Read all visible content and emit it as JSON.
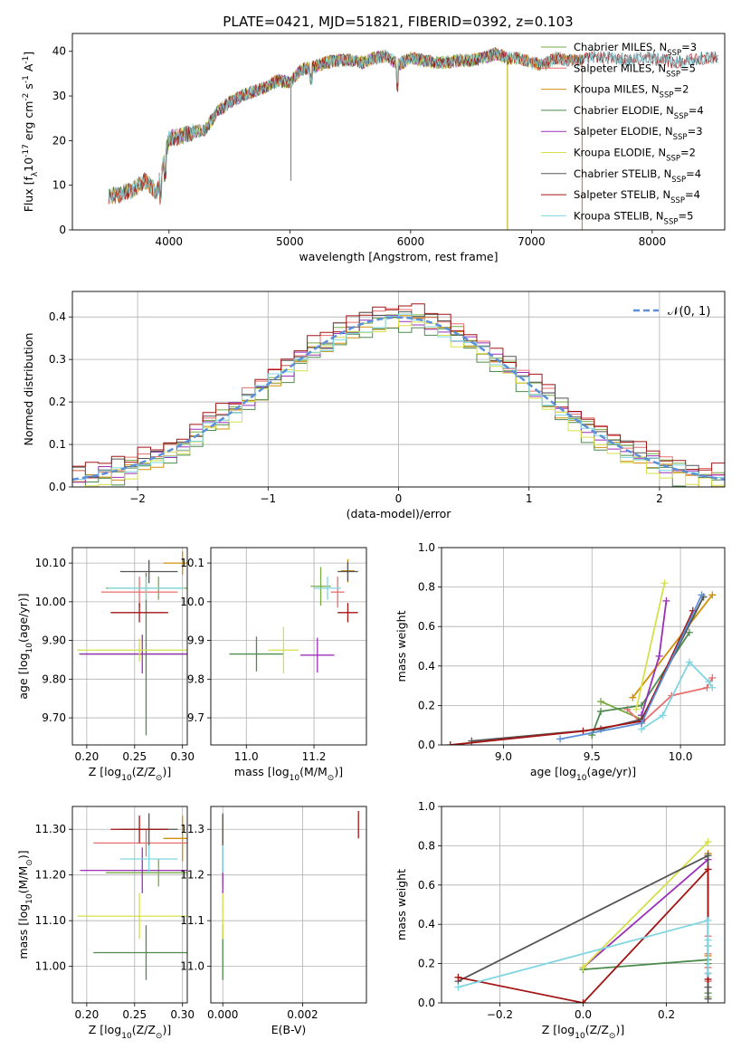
{
  "figure_title": "PLATE=0421, MJD=51821, FIBERID=0392, z=0.103",
  "models": [
    {
      "label": "Chabrier MILES, N$_{SSP}$=3",
      "base": "Chabrier MILES, N",
      "sub": "SSP",
      "tail": "=3",
      "color": "#77ab43"
    },
    {
      "label": "Salpeter MILES, N$_{SSP}$=5",
      "base": "Salpeter MILES, N",
      "sub": "SSP",
      "tail": "=5",
      "color": "#e86f6f"
    },
    {
      "label": "Kroupa MILES, N$_{SSP}$=2",
      "base": "Kroupa MILES, N",
      "sub": "SSP",
      "tail": "=2",
      "color": "#d2900a"
    },
    {
      "label": "Chabrier ELODIE, N$_{SSP}$=4",
      "base": "Chabrier ELODIE, N",
      "sub": "SSP",
      "tail": "=4",
      "color": "#4e8b4e"
    },
    {
      "label": "Salpeter ELODIE, N$_{SSP}$=3",
      "base": "Salpeter ELODIE, N",
      "sub": "SSP",
      "tail": "=3",
      "color": "#9b30b8"
    },
    {
      "label": "Kroupa ELODIE, N$_{SSP}$=2",
      "base": "Kroupa ELODIE, N",
      "sub": "SSP",
      "tail": "=2",
      "color": "#d6e04a"
    },
    {
      "label": "Chabrier STELIB, N$_{SSP}$=4",
      "base": "Chabrier STELIB, N",
      "sub": "SSP",
      "tail": "=4",
      "color": "#555555"
    },
    {
      "label": "Salpeter STELIB, N$_{SSP}$=4",
      "base": "Salpeter STELIB, N",
      "sub": "SSP",
      "tail": "=4",
      "color": "#a31515"
    },
    {
      "label": "Kroupa STELIB, N$_{SSP}$=5",
      "base": "Kroupa STELIB, N",
      "sub": "SSP",
      "tail": "=5",
      "color": "#7fd6e0"
    }
  ],
  "chart_data": [
    {
      "id": "spectrum",
      "type": "line",
      "title": "PLATE=0421, MJD=51821, FIBERID=0392, z=0.103",
      "xlabel": "wavelength [Angstrom, rest frame]",
      "ylabel": "Flux [f$_\\lambda$10$^{-17}$ erg cm$^{-2}$ s$^{-1}$ A$^{-1}$]",
      "xlim": [
        3200,
        8600
      ],
      "ylim": [
        0,
        44
      ],
      "xticks": [
        4000,
        5000,
        6000,
        7000,
        8000
      ],
      "yticks": [
        0,
        10,
        20,
        30,
        40
      ],
      "grid": false,
      "legend": "right",
      "x": [
        3500,
        3600,
        3700,
        3800,
        3900,
        3950,
        4000,
        4100,
        4200,
        4300,
        4400,
        4500,
        4600,
        4700,
        4800,
        4900,
        5000,
        5100,
        5200,
        5300,
        5400,
        5500,
        5600,
        5700,
        5800,
        5900,
        6000,
        6100,
        6200,
        6300,
        6400,
        6500,
        6600,
        6700,
        6800,
        6900,
        7000,
        7100,
        7200,
        7300,
        7400,
        7500,
        7600,
        7700,
        7800,
        7900,
        8000,
        8100,
        8200,
        8300,
        8400
      ],
      "y": [
        7.5,
        8.0,
        9.0,
        11.0,
        8.5,
        14.5,
        20.5,
        21.0,
        22.0,
        22.5,
        26.5,
        28.5,
        30.0,
        31.0,
        32.0,
        33.5,
        33.0,
        36.0,
        36.5,
        37.5,
        38.0,
        38.0,
        37.5,
        38.5,
        39.0,
        37.0,
        38.5,
        38.0,
        37.5,
        37.5,
        38.0,
        38.0,
        38.5,
        39.5,
        38.5,
        38.5,
        37.5,
        37.0,
        38.5,
        38.0,
        38.0,
        39.0,
        38.5,
        38.5,
        38.0,
        38.5,
        38.5,
        38.0,
        37.5,
        38.0,
        38.5
      ],
      "series": [
        {
          "name": "Chabrier MILES, N$_{SSP}$=3",
          "range": [
            3500,
            7420
          ]
        },
        {
          "name": "Salpeter MILES, N$_{SSP}$=5",
          "range": [
            3500,
            7420
          ]
        },
        {
          "name": "Kroupa MILES, N$_{SSP}$=2",
          "range": [
            3500,
            7420
          ]
        },
        {
          "name": "Chabrier ELODIE, N$_{SSP}$=4",
          "range": [
            3900,
            6800
          ]
        },
        {
          "name": "Salpeter ELODIE, N$_{SSP}$=3",
          "range": [
            3900,
            6800
          ]
        },
        {
          "name": "Kroupa ELODIE, N$_{SSP}$=2",
          "range": [
            3900,
            6800
          ]
        },
        {
          "name": "Chabrier STELIB, N$_{SSP}$=4",
          "range": [
            3500,
            8550
          ]
        },
        {
          "name": "Salpeter STELIB, N$_{SSP}$=4",
          "range": [
            3500,
            8550
          ]
        },
        {
          "name": "Kroupa STELIB, N$_{SSP}$=5",
          "range": [
            3500,
            8550
          ]
        }
      ]
    },
    {
      "id": "residuals",
      "type": "line",
      "xlabel": "(data-model)/error",
      "ylabel": "Normed distribution",
      "xlim": [
        -2.5,
        2.5
      ],
      "ylim": [
        0,
        0.46
      ],
      "xticks": [
        -2,
        -1,
        0,
        1,
        2
      ],
      "yticks": [
        0.0,
        0.1,
        0.2,
        0.3,
        0.4
      ],
      "grid": true,
      "legend": "top-right",
      "legend_entry": "$\\mathcal{N}(0,1)$",
      "legend_text": "𝒩(0, 1)",
      "reference_curve": "N(0,1)",
      "bin_width": 0.1,
      "series": [
        {
          "name": "Chabrier MILES, N$_{SSP}$=3",
          "offset": 0.005
        },
        {
          "name": "Salpeter MILES, N$_{SSP}$=5",
          "offset": 0.01
        },
        {
          "name": "Kroupa MILES, N$_{SSP}$=2",
          "offset": -0.01
        },
        {
          "name": "Chabrier ELODIE, N$_{SSP}$=4",
          "offset": -0.02
        },
        {
          "name": "Salpeter ELODIE, N$_{SSP}$=3",
          "offset": 0.0
        },
        {
          "name": "Kroupa ELODIE, N$_{SSP}$=2",
          "offset": -0.015
        },
        {
          "name": "Chabrier STELIB, N$_{SSP}$=4",
          "offset": 0.012
        },
        {
          "name": "Salpeter STELIB, N$_{SSP}$=4",
          "offset": 0.02
        },
        {
          "name": "Kroupa STELIB, N$_{SSP}$=5",
          "offset": -0.005
        }
      ]
    },
    {
      "id": "age_vs_Z",
      "type": "scatter",
      "xlabel": "Z [log$_{10}$(Z/Z$_\\odot$)]",
      "ylabel": "age  [log$_{10}$(age/yr)]",
      "xlim": [
        0.185,
        0.305
      ],
      "ylim": [
        9.63,
        10.14
      ],
      "xticks": [
        0.2,
        0.25,
        0.3
      ],
      "yticks": [
        9.7,
        9.8,
        9.9,
        10.0,
        10.1
      ],
      "grid": true,
      "points": [
        {
          "x": 0.275,
          "y": 10.035,
          "xerr": 0.055,
          "yerr": 0.03,
          "model": 0
        },
        {
          "x": 0.255,
          "y": 10.025,
          "xerr": 0.04,
          "yerr": 0.04,
          "model": 1
        },
        {
          "x": 0.3,
          "y": 10.1,
          "xerr": 0.02,
          "yerr": 0.03,
          "model": 2
        },
        {
          "x": 0.262,
          "y": 9.865,
          "xerr": 0.07,
          "yerr": 0.21,
          "model": 3
        },
        {
          "x": 0.258,
          "y": 9.865,
          "xerr": 0.065,
          "yerr": 0.05,
          "model": 4
        },
        {
          "x": 0.255,
          "y": 9.875,
          "xerr": 0.065,
          "yerr": 0.03,
          "model": 5
        },
        {
          "x": 0.265,
          "y": 10.078,
          "xerr": 0.03,
          "yerr": 0.03,
          "model": 6
        },
        {
          "x": 0.255,
          "y": 9.972,
          "xerr": 0.03,
          "yerr": 0.025,
          "model": 7
        },
        {
          "x": 0.262,
          "y": 10.035,
          "xerr": 0.04,
          "yerr": 0.03,
          "model": 8
        }
      ]
    },
    {
      "id": "age_vs_mass",
      "type": "scatter",
      "xlabel": "mass [log$_{10}$(M/M$_\\odot$)]",
      "xlim": [
        10.895,
        11.355
      ],
      "ylim": [
        9.63,
        10.14
      ],
      "xticks": [
        11.0,
        11.2
      ],
      "yticks": [
        9.7,
        9.8,
        9.9,
        10.0,
        10.1
      ],
      "grid": true,
      "points": [
        {
          "x": 11.22,
          "y": 10.04,
          "xerr": 0.03,
          "yerr": 0.05,
          "model": 0
        },
        {
          "x": 11.27,
          "y": 10.025,
          "xerr": 0.02,
          "yerr": 0.04,
          "model": 1
        },
        {
          "x": 11.3,
          "y": 10.08,
          "xerr": 0.02,
          "yerr": 0.03,
          "model": 2
        },
        {
          "x": 11.03,
          "y": 9.865,
          "xerr": 0.08,
          "yerr": 0.045,
          "model": 3
        },
        {
          "x": 11.21,
          "y": 9.862,
          "xerr": 0.05,
          "yerr": 0.045,
          "model": 4
        },
        {
          "x": 11.11,
          "y": 9.875,
          "xerr": 0.045,
          "yerr": 0.06,
          "model": 5
        },
        {
          "x": 11.3,
          "y": 10.078,
          "xerr": 0.03,
          "yerr": 0.025,
          "model": 6
        },
        {
          "x": 11.3,
          "y": 9.972,
          "xerr": 0.03,
          "yerr": 0.025,
          "model": 7
        },
        {
          "x": 11.24,
          "y": 10.035,
          "xerr": 0.04,
          "yerr": 0.03,
          "model": 8
        }
      ]
    },
    {
      "id": "weight_vs_age",
      "type": "line",
      "xlabel": "age  [log$_{10}$(age/yr)]",
      "ylabel": "mass weight",
      "xlim": [
        8.65,
        10.25
      ],
      "ylim": [
        0,
        1.0
      ],
      "xticks": [
        9.0,
        9.5,
        10.0
      ],
      "yticks": [
        0.0,
        0.2,
        0.4,
        0.6,
        0.8,
        1.0
      ],
      "grid": true,
      "series": [
        {
          "name": "Chabrier MILES, N$_{SSP}$=3",
          "x": [
            9.55,
            9.78,
            10.13
          ],
          "y": [
            0.22,
            0.13,
            0.75
          ]
        },
        {
          "name": "Salpeter MILES, N$_{SSP}$=5",
          "x": [
            9.7,
            9.78,
            9.95,
            10.15,
            10.18
          ],
          "y": [
            0.18,
            0.11,
            0.25,
            0.29,
            0.34
          ]
        },
        {
          "name": "Kroupa MILES, N$_{SSP}$=2",
          "x": [
            9.73,
            10.18
          ],
          "y": [
            0.24,
            0.76
          ]
        },
        {
          "name": "Chabrier ELODIE, N$_{SSP}$=4",
          "x": [
            9.5,
            9.55,
            9.78,
            10.05
          ],
          "y": [
            0.05,
            0.17,
            0.2,
            0.57
          ]
        },
        {
          "name": "Salpeter ELODIE, N$_{SSP}$=3",
          "x": [
            9.78,
            9.88,
            9.92
          ],
          "y": [
            0.15,
            0.45,
            0.73
          ]
        },
        {
          "name": "Kroupa ELODIE, N$_{SSP}$=2",
          "x": [
            9.75,
            9.91
          ],
          "y": [
            0.18,
            0.82
          ]
        },
        {
          "name": "Chabrier STELIB, N$_{SSP}$=4",
          "x": [
            8.82,
            9.55,
            9.78,
            10.13
          ],
          "y": [
            0.02,
            0.08,
            0.13,
            0.75
          ]
        },
        {
          "name": "Salpeter STELIB, N$_{SSP}$=4",
          "x": [
            8.7,
            9.45,
            9.78,
            10.07
          ],
          "y": [
            0.0,
            0.07,
            0.12,
            0.68
          ]
        },
        {
          "name": "Kroupa STELIB, N$_{SSP}$=5",
          "x": [
            9.78,
            9.9,
            10.05,
            10.16,
            10.18
          ],
          "y": [
            0.08,
            0.15,
            0.42,
            0.32,
            0.29
          ]
        },
        {
          "name": "Chabrier MILES, N$_{SSP}$=3",
          "x": [
            9.32,
            9.78,
            10.12
          ],
          "y": [
            0.03,
            0.11,
            0.76
          ]
        }
      ]
    },
    {
      "id": "mass_vs_Z",
      "type": "scatter",
      "xlabel": "Z [log$_{10}$(Z/Z$_\\odot$)]",
      "ylabel": "mass [log$_{10}$(M/M$_\\odot$)]",
      "xlim": [
        0.185,
        0.305
      ],
      "ylim": [
        10.92,
        11.35
      ],
      "xticks": [
        0.2,
        0.25,
        0.3
      ],
      "yticks": [
        11.0,
        11.1,
        11.2,
        11.3
      ],
      "grid": true,
      "points": [
        {
          "x": 0.275,
          "y": 11.205,
          "xerr": 0.055,
          "yerr": 0.03,
          "model": 0
        },
        {
          "x": 0.262,
          "y": 11.27,
          "xerr": 0.055,
          "yerr": 0.03,
          "model": 1
        },
        {
          "x": 0.3,
          "y": 11.28,
          "xerr": 0.02,
          "yerr": 0.05,
          "model": 2
        },
        {
          "x": 0.262,
          "y": 11.03,
          "xerr": 0.055,
          "yerr": 0.06,
          "model": 3
        },
        {
          "x": 0.258,
          "y": 11.21,
          "xerr": 0.065,
          "yerr": 0.05,
          "model": 4
        },
        {
          "x": 0.255,
          "y": 11.11,
          "xerr": 0.065,
          "yerr": 0.05,
          "model": 5
        },
        {
          "x": 0.265,
          "y": 11.3,
          "xerr": 0.03,
          "yerr": 0.035,
          "model": 6
        },
        {
          "x": 0.255,
          "y": 11.3,
          "xerr": 0.03,
          "yerr": 0.03,
          "model": 7
        },
        {
          "x": 0.265,
          "y": 11.235,
          "xerr": 0.03,
          "yerr": 0.03,
          "model": 8
        }
      ]
    },
    {
      "id": "mass_vs_EBV",
      "type": "scatter",
      "xlabel": "E(B-V)",
      "xlim": [
        -0.0003,
        0.0036
      ],
      "ylim": [
        10.92,
        11.35
      ],
      "xticks": [
        0.0,
        0.002
      ],
      "yticks": [
        11.0,
        11.1,
        11.2,
        11.3
      ],
      "grid": true,
      "points": [
        {
          "x": 0.0,
          "y": 11.205,
          "yerr": 0.03,
          "model": 0
        },
        {
          "x": 0.0,
          "y": 11.27,
          "yerr": 0.03,
          "model": 1
        },
        {
          "x": 0.0,
          "y": 11.28,
          "yerr": 0.05,
          "model": 2
        },
        {
          "x": 0.0,
          "y": 11.03,
          "yerr": 0.06,
          "model": 3
        },
        {
          "x": 0.0,
          "y": 11.21,
          "yerr": 0.05,
          "model": 4
        },
        {
          "x": 0.0,
          "y": 11.11,
          "yerr": 0.05,
          "model": 5
        },
        {
          "x": 0.0,
          "y": 11.3,
          "yerr": 0.035,
          "model": 6
        },
        {
          "x": 0.0034,
          "y": 11.31,
          "yerr": 0.03,
          "model": 7
        },
        {
          "x": 0.0,
          "y": 11.235,
          "yerr": 0.03,
          "model": 8
        }
      ]
    },
    {
      "id": "weight_vs_Z",
      "type": "line",
      "xlabel": "Z [log$_{10}$(Z/Z$_\\odot$)]",
      "ylabel": "mass weight",
      "xlim": [
        -0.34,
        0.34
      ],
      "ylim": [
        0,
        1.0
      ],
      "xticks": [
        -0.2,
        0.0,
        0.2
      ],
      "yticks": [
        0.0,
        0.2,
        0.4,
        0.6,
        0.8,
        1.0
      ],
      "grid": true,
      "series": [
        {
          "name": "Chabrier MILES, N$_{SSP}$=3",
          "x": [
            0.3,
            0.3,
            0.3
          ],
          "y": [
            0.03,
            0.11,
            0.76
          ]
        },
        {
          "name": "Salpeter MILES, N$_{SSP}$=5",
          "x": [
            0.3,
            0.3,
            0.3,
            0.3,
            0.3
          ],
          "y": [
            0.11,
            0.18,
            0.25,
            0.29,
            0.34
          ]
        },
        {
          "name": "Kroupa MILES, N$_{SSP}$=2",
          "x": [
            0.3,
            0.3
          ],
          "y": [
            0.24,
            0.76
          ]
        },
        {
          "name": "Chabrier ELODIE, N$_{SSP}$=4",
          "x": [
            0.0,
            0.3,
            0.3,
            0.3
          ],
          "y": [
            0.17,
            0.22,
            0.05,
            0.2
          ]
        },
        {
          "name": "Salpeter ELODIE, N$_{SSP}$=3",
          "x": [
            0.0,
            0.3,
            0.3
          ],
          "y": [
            0.18,
            0.73,
            0.15
          ]
        },
        {
          "name": "Kroupa ELODIE, N$_{SSP}$=2",
          "x": [
            0.0,
            0.3
          ],
          "y": [
            0.18,
            0.82
          ]
        },
        {
          "name": "Chabrier STELIB, N$_{SSP}$=4",
          "x": [
            -0.3,
            0.3,
            0.3,
            0.3
          ],
          "y": [
            0.11,
            0.75,
            0.02,
            0.08
          ]
        },
        {
          "name": "Salpeter STELIB, N$_{SSP}$=4",
          "x": [
            -0.3,
            0.0,
            0.3,
            0.3
          ],
          "y": [
            0.13,
            0.0,
            0.68,
            0.12
          ]
        },
        {
          "name": "Kroupa STELIB, N$_{SSP}$=5",
          "x": [
            -0.3,
            0.3,
            0.3,
            0.3,
            0.3
          ],
          "y": [
            0.08,
            0.42,
            0.29,
            0.15,
            0.32
          ]
        }
      ]
    }
  ]
}
